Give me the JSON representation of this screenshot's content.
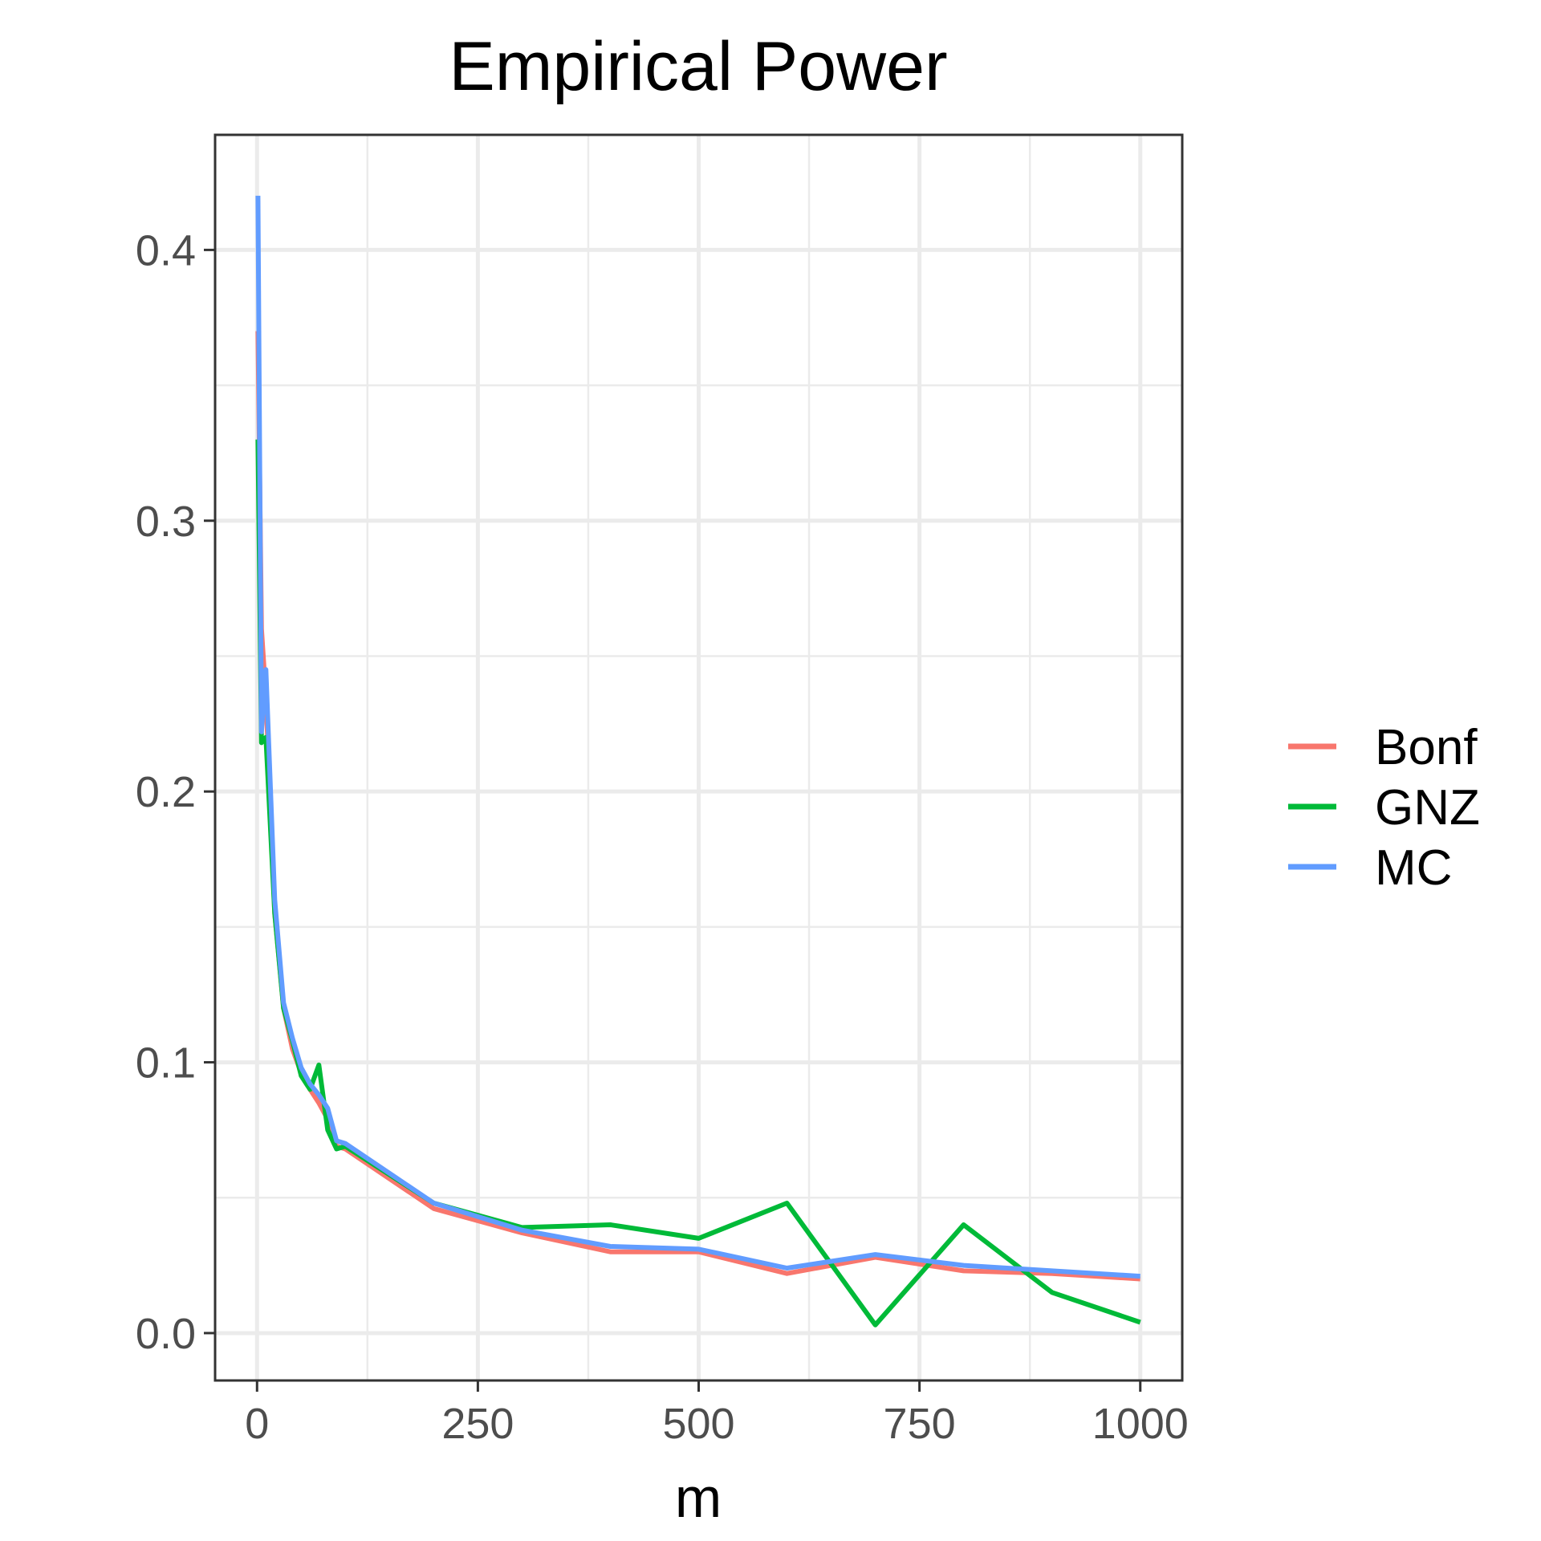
{
  "chart_data": {
    "type": "line",
    "title": "Empirical Power",
    "xlabel": "m",
    "ylabel": "",
    "xlim": [
      -47.5,
      1047.5
    ],
    "ylim": [
      -0.0175,
      0.4425
    ],
    "x_ticks": [
      0,
      250,
      500,
      750,
      1000
    ],
    "x_tick_labels": [
      "0",
      "250",
      "500",
      "750",
      "1000"
    ],
    "y_ticks": [
      0.0,
      0.1,
      0.2,
      0.3,
      0.4
    ],
    "y_tick_labels": [
      "0.0",
      "0.1",
      "0.2",
      "0.3",
      "0.4"
    ],
    "grid": true,
    "legend_position": "right",
    "series": [
      {
        "name": "Bonf",
        "color": "#F8766D",
        "x": [
          1,
          5,
          10,
          20,
          30,
          40,
          50,
          60,
          70,
          80,
          90,
          100,
          200,
          300,
          400,
          500,
          600,
          700,
          800,
          900,
          1000
        ],
        "y": [
          0.37,
          0.26,
          0.235,
          0.155,
          0.12,
          0.105,
          0.096,
          0.09,
          0.085,
          0.079,
          0.069,
          0.068,
          0.046,
          0.037,
          0.03,
          0.03,
          0.022,
          0.028,
          0.023,
          0.022,
          0.02
        ]
      },
      {
        "name": "GNZ",
        "color": "#00BA38",
        "x": [
          1,
          5,
          10,
          20,
          30,
          40,
          50,
          60,
          70,
          80,
          90,
          100,
          200,
          300,
          400,
          500,
          600,
          700,
          800,
          900,
          1000
        ],
        "y": [
          0.33,
          0.218,
          0.22,
          0.155,
          0.12,
          0.108,
          0.095,
          0.09,
          0.099,
          0.075,
          0.068,
          0.069,
          0.048,
          0.039,
          0.04,
          0.035,
          0.048,
          0.003,
          0.04,
          0.015,
          0.004
        ]
      },
      {
        "name": "MC",
        "color": "#619CFF",
        "x": [
          1,
          5,
          10,
          20,
          30,
          40,
          50,
          60,
          70,
          80,
          90,
          100,
          200,
          300,
          400,
          500,
          600,
          700,
          800,
          900,
          1000
        ],
        "y": [
          0.42,
          0.222,
          0.245,
          0.16,
          0.122,
          0.109,
          0.098,
          0.092,
          0.088,
          0.083,
          0.071,
          0.07,
          0.048,
          0.038,
          0.032,
          0.031,
          0.024,
          0.029,
          0.025,
          0.023,
          0.021
        ]
      }
    ]
  }
}
